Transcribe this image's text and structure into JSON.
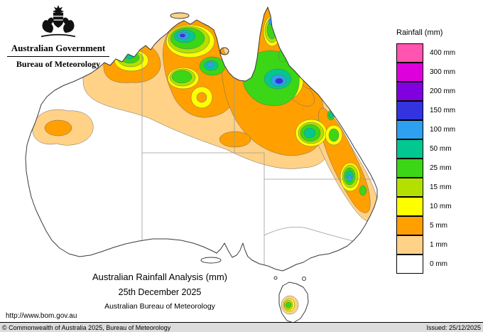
{
  "header": {
    "government": "Australian Government",
    "bureau": "Bureau of Meteorology"
  },
  "legend": {
    "title": "Rainfall (mm)",
    "items": [
      {
        "label": "400 mm",
        "value": 400,
        "color": "#ff54b0"
      },
      {
        "label": "300 mm",
        "value": 300,
        "color": "#dd00dd"
      },
      {
        "label": "200 mm",
        "value": 200,
        "color": "#8000e0"
      },
      {
        "label": "150 mm",
        "value": 150,
        "color": "#3333e0"
      },
      {
        "label": "100 mm",
        "value": 100,
        "color": "#2ea0f0"
      },
      {
        "label": "50 mm",
        "value": 50,
        "color": "#00c890"
      },
      {
        "label": "25 mm",
        "value": 25,
        "color": "#3bd615"
      },
      {
        "label": "15 mm",
        "value": 15,
        "color": "#b4e000"
      },
      {
        "label": "10 mm",
        "value": 10,
        "color": "#ffff00"
      },
      {
        "label": "5 mm",
        "value": 5,
        "color": "#ffa000"
      },
      {
        "label": "1 mm",
        "value": 1,
        "color": "#ffd287"
      },
      {
        "label": "0 mm",
        "value": 0,
        "color": "#ffffff"
      }
    ]
  },
  "caption": {
    "title": "Australian Rainfall Analysis (mm)",
    "date": "25th December 2025",
    "organisation": "Australian Bureau of Meteorology"
  },
  "links": {
    "url": "http://www.bom.gov.au"
  },
  "footer": {
    "copyright": "© Commonwealth of Australia 2025, Bureau of Meteorology",
    "issued": "Issued: 25/12/2025"
  }
}
